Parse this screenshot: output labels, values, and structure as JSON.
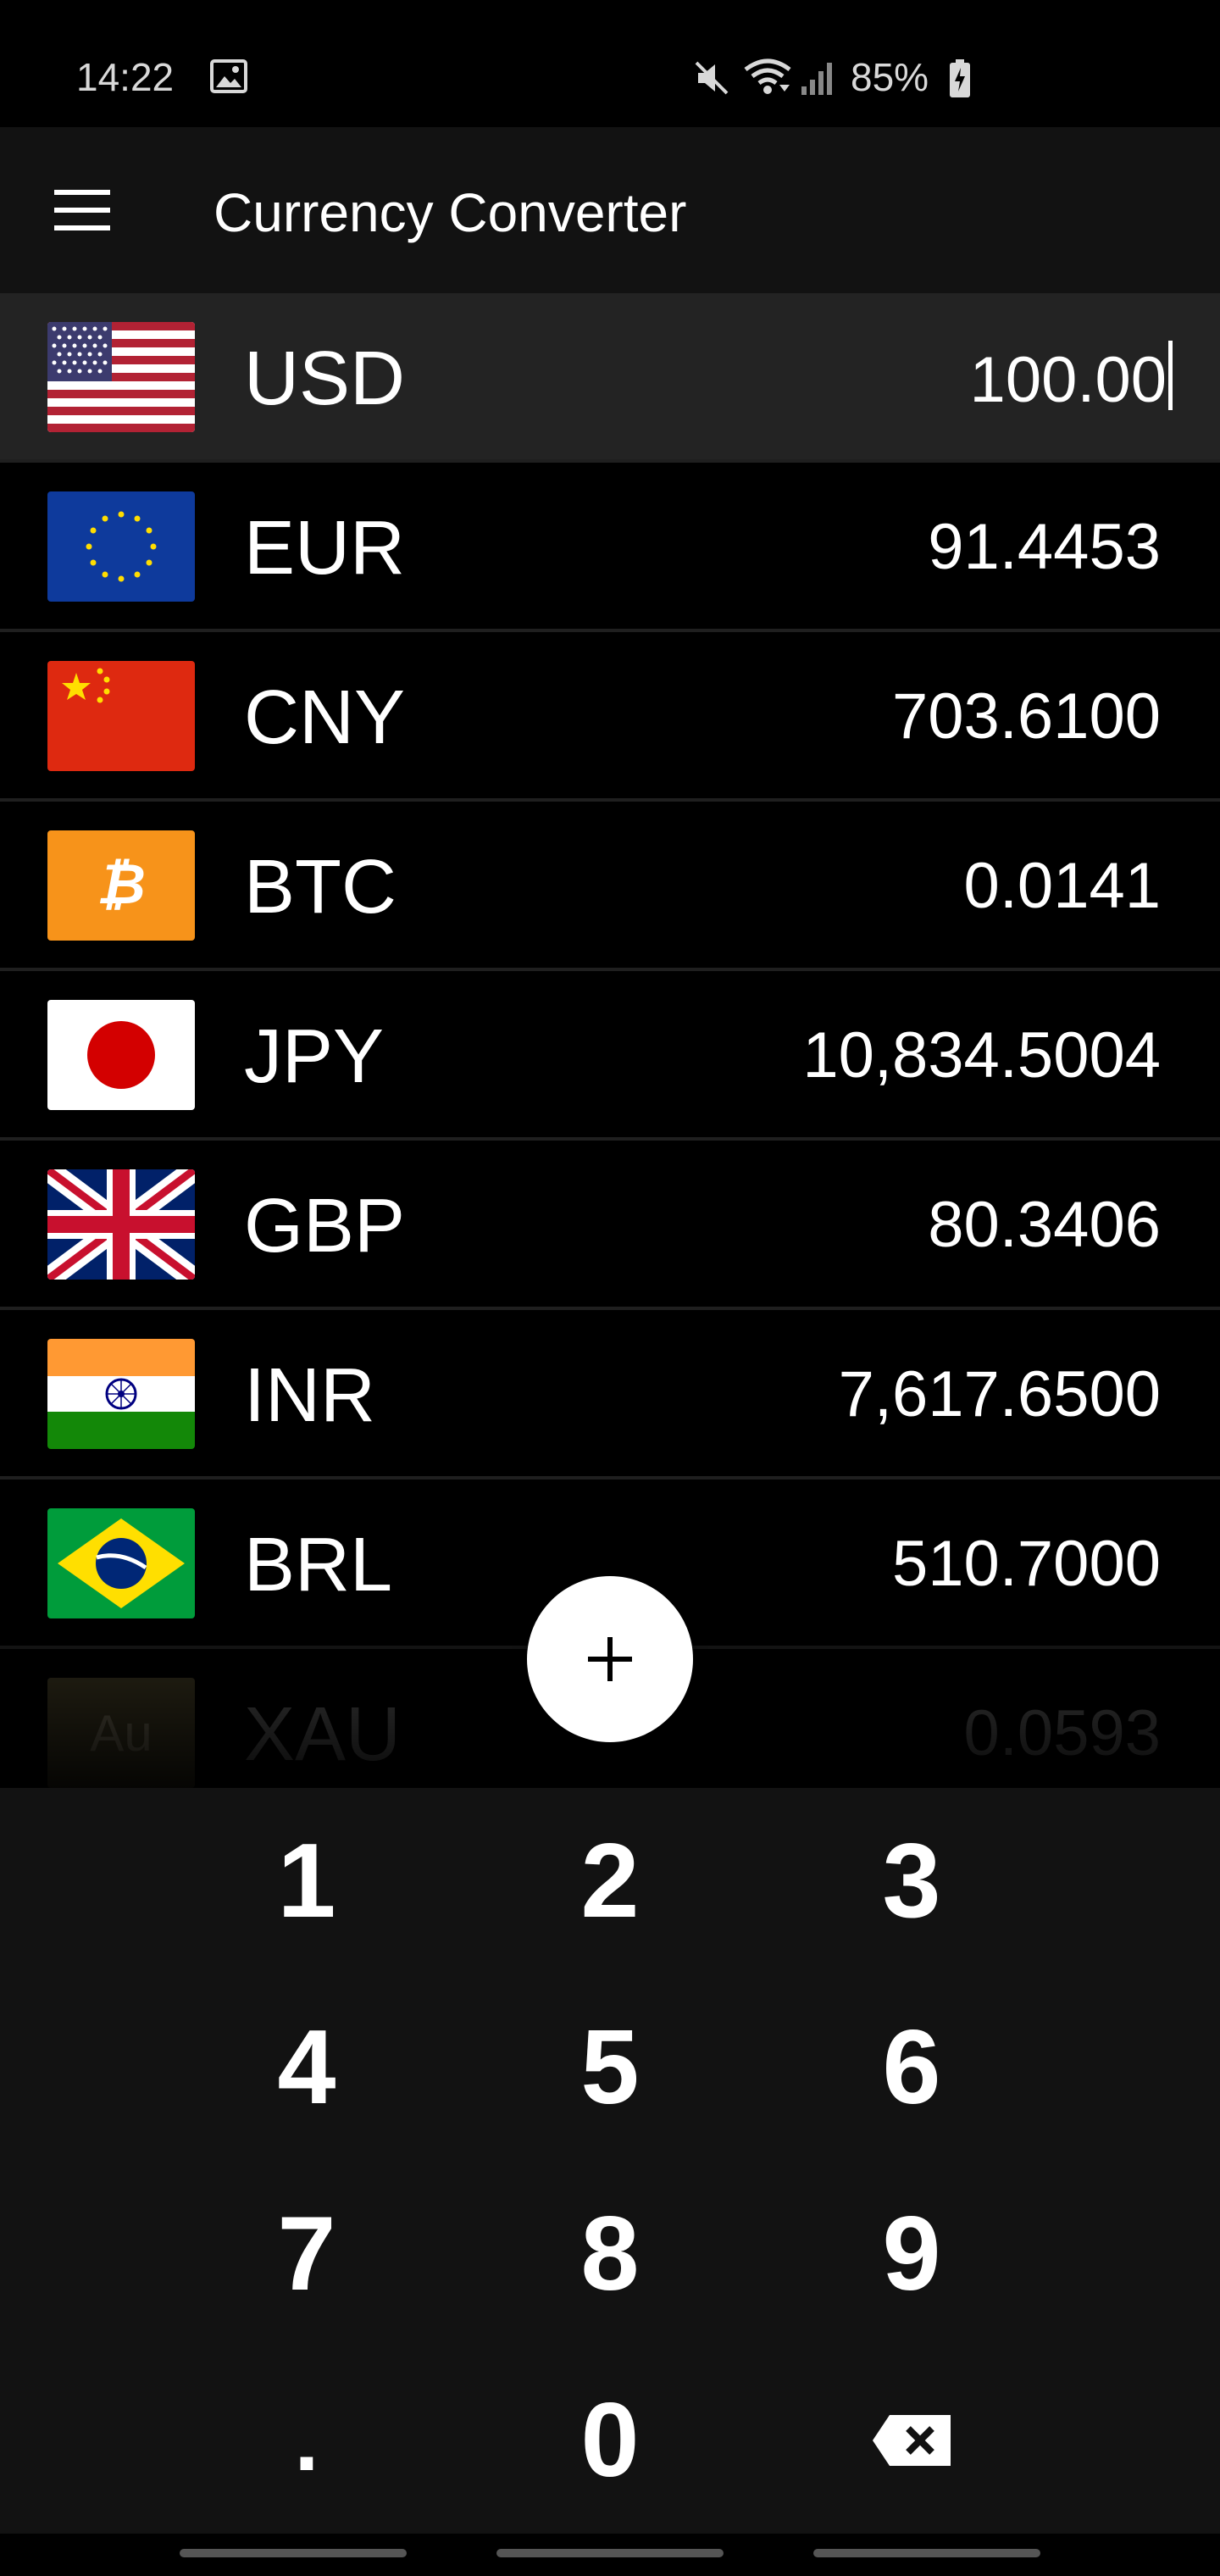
{
  "status_bar": {
    "time": "14:22",
    "battery": "85%",
    "icons": [
      "image-icon",
      "mute-icon",
      "wifi-icon",
      "signal-icon",
      "battery-charging-icon"
    ]
  },
  "app_bar": {
    "title": "Currency Converter",
    "menu_icon": "hamburger-menu-icon"
  },
  "currencies": [
    {
      "code": "USD",
      "value": "100.00",
      "flag": "us-flag",
      "selected": true
    },
    {
      "code": "EUR",
      "value": "91.4453",
      "flag": "eu-flag"
    },
    {
      "code": "CNY",
      "value": "703.6100",
      "flag": "cn-flag"
    },
    {
      "code": "BTC",
      "value": "0.0141",
      "flag": "bitcoin-icon"
    },
    {
      "code": "JPY",
      "value": "10,834.5004",
      "flag": "jp-flag"
    },
    {
      "code": "GBP",
      "value": "80.3406",
      "flag": "uk-flag"
    },
    {
      "code": "INR",
      "value": "7,617.6500",
      "flag": "in-flag"
    },
    {
      "code": "BRL",
      "value": "510.7000",
      "flag": "br-flag"
    },
    {
      "code": "XAU",
      "value": "0.0593",
      "flag": "gold-icon",
      "flag_text": "Au"
    }
  ],
  "fab": {
    "icon": "plus-icon"
  },
  "keypad": {
    "keys": [
      "1",
      "2",
      "3",
      "4",
      "5",
      "6",
      "7",
      "8",
      "9",
      ".",
      "0"
    ],
    "backspace_icon": "backspace-icon"
  },
  "colors": {
    "background": "#000000",
    "app_bar": "#121212",
    "selected_row": "#232323",
    "bitcoin_orange": "#F7931A",
    "gold": "#3A3520"
  }
}
